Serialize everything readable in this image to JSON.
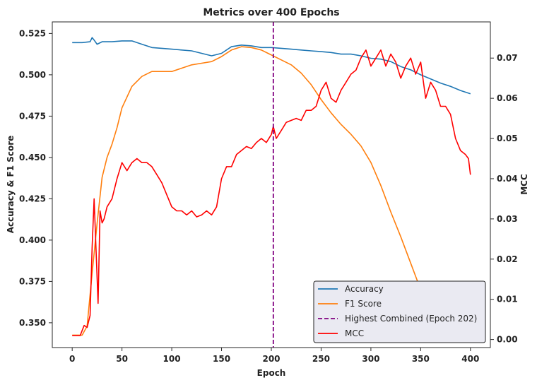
{
  "chart_data": {
    "type": "line",
    "title": "Metrics over 400 Epochs",
    "xlabel": "Epoch",
    "ylabel_left": "Accuracy & F1 Score",
    "ylabel_right": "MCC",
    "xlim": [
      -20,
      420
    ],
    "ylim_left": [
      0.335,
      0.532
    ],
    "ylim_right": [
      -0.002,
      0.079
    ],
    "x_ticks": [
      "0",
      "50",
      "100",
      "150",
      "200",
      "250",
      "300",
      "350",
      "400"
    ],
    "y_left_ticks": [
      "0.350",
      "0.375",
      "0.400",
      "0.425",
      "0.450",
      "0.475",
      "0.500",
      "0.525"
    ],
    "y_right_ticks": [
      "0.00",
      "0.01",
      "0.02",
      "0.03",
      "0.04",
      "0.05",
      "0.06",
      "0.07"
    ],
    "grid": false,
    "legend_position": "bottom-right",
    "colors": {
      "accuracy": "#1f77b4",
      "f1": "#ff7f0e",
      "mcc": "#ff0000",
      "marker": "#800080"
    },
    "series": [
      {
        "name": "Accuracy",
        "axis": "left",
        "x": [
          0,
          10,
          18,
          20,
          22,
          25,
          30,
          40,
          50,
          60,
          70,
          80,
          90,
          100,
          110,
          120,
          130,
          140,
          150,
          160,
          170,
          180,
          190,
          200,
          210,
          220,
          230,
          240,
          250,
          260,
          270,
          280,
          290,
          300,
          310,
          320,
          330,
          340,
          350,
          360,
          370,
          380,
          390,
          400
        ],
        "values": [
          0.5195,
          0.5195,
          0.52,
          0.5225,
          0.521,
          0.5185,
          0.52,
          0.52,
          0.5205,
          0.5205,
          0.5185,
          0.5165,
          0.516,
          0.5155,
          0.515,
          0.5145,
          0.513,
          0.5115,
          0.513,
          0.517,
          0.518,
          0.5175,
          0.5165,
          0.5165,
          0.516,
          0.5155,
          0.515,
          0.5145,
          0.514,
          0.5135,
          0.5125,
          0.5125,
          0.5115,
          0.51,
          0.5095,
          0.508,
          0.505,
          0.503,
          0.5,
          0.4975,
          0.495,
          0.493,
          0.4905,
          0.4885
        ]
      },
      {
        "name": "F1 Score",
        "axis": "left",
        "x": [
          0,
          10,
          15,
          20,
          25,
          30,
          35,
          40,
          45,
          50,
          60,
          70,
          80,
          90,
          100,
          110,
          120,
          130,
          140,
          150,
          160,
          170,
          180,
          190,
          200,
          210,
          220,
          230,
          240,
          250,
          260,
          270,
          280,
          290,
          300,
          310,
          320,
          330,
          340,
          350,
          360,
          370,
          380,
          390,
          400
        ],
        "values": [
          0.3425,
          0.3425,
          0.348,
          0.38,
          0.41,
          0.438,
          0.45,
          0.458,
          0.468,
          0.48,
          0.493,
          0.499,
          0.502,
          0.502,
          0.502,
          0.504,
          0.506,
          0.507,
          0.508,
          0.511,
          0.515,
          0.517,
          0.5165,
          0.515,
          0.512,
          0.509,
          0.506,
          0.501,
          0.494,
          0.485,
          0.477,
          0.47,
          0.464,
          0.457,
          0.447,
          0.433,
          0.417,
          0.402,
          0.386,
          0.37,
          0.359,
          0.356,
          0.357,
          0.358,
          0.359
        ]
      },
      {
        "name": "MCC",
        "axis": "right",
        "x": [
          0,
          8,
          12,
          15,
          18,
          20,
          22,
          24,
          26,
          28,
          30,
          32,
          35,
          40,
          45,
          50,
          55,
          60,
          65,
          70,
          75,
          80,
          85,
          90,
          95,
          100,
          105,
          110,
          115,
          120,
          125,
          130,
          135,
          140,
          145,
          150,
          155,
          160,
          165,
          170,
          175,
          180,
          185,
          190,
          195,
          200,
          202,
          205,
          210,
          215,
          220,
          225,
          230,
          235,
          240,
          245,
          250,
          255,
          260,
          265,
          270,
          275,
          280,
          285,
          290,
          295,
          300,
          305,
          310,
          315,
          320,
          325,
          330,
          335,
          340,
          345,
          350,
          355,
          360,
          365,
          370,
          375,
          380,
          385,
          390,
          395,
          398,
          400
        ],
        "values": [
          0.001,
          0.001,
          0.0035,
          0.003,
          0.006,
          0.023,
          0.035,
          0.022,
          0.009,
          0.032,
          0.029,
          0.03,
          0.033,
          0.035,
          0.04,
          0.044,
          0.042,
          0.044,
          0.045,
          0.044,
          0.044,
          0.043,
          0.041,
          0.039,
          0.036,
          0.033,
          0.032,
          0.032,
          0.031,
          0.032,
          0.0305,
          0.031,
          0.032,
          0.031,
          0.033,
          0.04,
          0.043,
          0.043,
          0.046,
          0.047,
          0.048,
          0.0475,
          0.049,
          0.05,
          0.049,
          0.051,
          0.053,
          0.05,
          0.052,
          0.054,
          0.0545,
          0.055,
          0.0545,
          0.057,
          0.057,
          0.058,
          0.062,
          0.064,
          0.06,
          0.059,
          0.062,
          0.064,
          0.066,
          0.067,
          0.07,
          0.072,
          0.068,
          0.07,
          0.072,
          0.068,
          0.071,
          0.069,
          0.065,
          0.068,
          0.07,
          0.066,
          0.069,
          0.06,
          0.064,
          0.062,
          0.058,
          0.058,
          0.056,
          0.05,
          0.047,
          0.046,
          0.045,
          0.041
        ]
      }
    ],
    "marker": {
      "name": "Highest Combined (Epoch 202)",
      "x": 202,
      "style": "dashed"
    },
    "legend": [
      "Accuracy",
      "F1 Score",
      "Highest Combined (Epoch 202)",
      "MCC"
    ]
  }
}
